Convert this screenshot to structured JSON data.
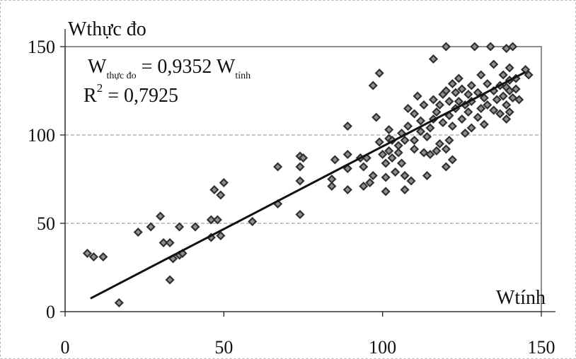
{
  "chart_data": {
    "type": "scatter",
    "title": "",
    "xlabel": "Wtính",
    "ylabel": "Wthực đo",
    "xlim": [
      0,
      150
    ],
    "ylim": [
      0,
      150
    ],
    "xticks": [
      "0",
      "50",
      "100",
      "150"
    ],
    "yticks": [
      "0",
      "50",
      "100",
      "150"
    ],
    "grid": "horizontal",
    "equation": {
      "w1": "W",
      "sub1": "thực đo",
      "eq": " = 0,9352 W",
      "sub2": "tính",
      "r": "R",
      "sup": "2",
      "rval": " = 0,7925"
    },
    "trendline": {
      "slope": 0.9352,
      "intercept": 0,
      "x_start": 8,
      "x_end": 145
    },
    "points": [
      [
        7,
        33
      ],
      [
        9,
        31
      ],
      [
        12,
        31
      ],
      [
        17,
        5
      ],
      [
        23,
        45
      ],
      [
        27,
        48
      ],
      [
        30,
        54
      ],
      [
        31,
        39
      ],
      [
        33,
        39
      ],
      [
        33,
        18
      ],
      [
        34,
        30
      ],
      [
        36,
        32
      ],
      [
        36,
        48
      ],
      [
        37,
        33
      ],
      [
        41,
        48
      ],
      [
        46,
        42
      ],
      [
        46,
        52
      ],
      [
        47,
        69
      ],
      [
        48,
        52
      ],
      [
        49,
        43
      ],
      [
        49,
        66
      ],
      [
        50,
        73
      ],
      [
        59,
        51
      ],
      [
        67,
        61
      ],
      [
        67,
        82
      ],
      [
        74,
        88
      ],
      [
        74,
        82
      ],
      [
        74,
        74
      ],
      [
        74,
        55
      ],
      [
        75,
        87
      ],
      [
        84,
        71
      ],
      [
        84,
        75
      ],
      [
        85,
        86
      ],
      [
        89,
        69
      ],
      [
        89,
        81
      ],
      [
        89,
        89
      ],
      [
        89,
        105
      ],
      [
        93,
        87
      ],
      [
        94,
        71
      ],
      [
        94,
        82
      ],
      [
        95,
        87
      ],
      [
        96,
        73
      ],
      [
        97,
        77
      ],
      [
        97,
        128
      ],
      [
        98,
        110
      ],
      [
        99,
        96
      ],
      [
        99,
        135
      ],
      [
        100,
        89
      ],
      [
        101,
        68
      ],
      [
        101,
        76
      ],
      [
        101,
        84
      ],
      [
        102,
        91
      ],
      [
        102,
        98
      ],
      [
        102,
        103
      ],
      [
        103,
        87
      ],
      [
        103,
        97
      ],
      [
        104,
        79
      ],
      [
        105,
        90
      ],
      [
        105,
        94
      ],
      [
        106,
        84
      ],
      [
        106,
        101
      ],
      [
        107,
        69
      ],
      [
        107,
        77
      ],
      [
        107,
        97
      ],
      [
        108,
        105
      ],
      [
        108,
        115
      ],
      [
        109,
        74
      ],
      [
        110,
        92
      ],
      [
        110,
        97
      ],
      [
        110,
        112
      ],
      [
        111,
        122
      ],
      [
        112,
        102
      ],
      [
        112,
        108
      ],
      [
        113,
        90
      ],
      [
        113,
        117
      ],
      [
        114,
        77
      ],
      [
        114,
        99
      ],
      [
        115,
        89
      ],
      [
        115,
        104
      ],
      [
        116,
        109
      ],
      [
        116,
        120
      ],
      [
        116,
        143
      ],
      [
        117,
        91
      ],
      [
        117,
        113
      ],
      [
        118,
        95
      ],
      [
        118,
        117
      ],
      [
        119,
        107
      ],
      [
        119,
        123
      ],
      [
        120,
        82
      ],
      [
        120,
        92
      ],
      [
        120,
        125
      ],
      [
        120,
        150
      ],
      [
        121,
        97
      ],
      [
        121,
        111
      ],
      [
        121,
        119
      ],
      [
        122,
        86
      ],
      [
        122,
        105
      ],
      [
        122,
        129
      ],
      [
        123,
        115
      ],
      [
        123,
        124
      ],
      [
        124,
        119
      ],
      [
        124,
        132
      ],
      [
        125,
        109
      ],
      [
        125,
        126
      ],
      [
        126,
        101
      ],
      [
        126,
        117
      ],
      [
        127,
        113
      ],
      [
        127,
        123
      ],
      [
        128,
        104
      ],
      [
        128,
        119
      ],
      [
        128,
        128
      ],
      [
        129,
        150
      ],
      [
        130,
        110
      ],
      [
        130,
        124
      ],
      [
        131,
        115
      ],
      [
        131,
        134
      ],
      [
        132,
        106
      ],
      [
        132,
        121
      ],
      [
        133,
        117
      ],
      [
        133,
        129
      ],
      [
        134,
        150
      ],
      [
        135,
        114
      ],
      [
        135,
        125
      ],
      [
        135,
        140
      ],
      [
        136,
        120
      ],
      [
        137,
        112
      ],
      [
        137,
        128
      ],
      [
        138,
        122
      ],
      [
        138,
        134
      ],
      [
        139,
        109
      ],
      [
        139,
        117
      ],
      [
        139,
        127
      ],
      [
        139,
        149
      ],
      [
        140,
        113
      ],
      [
        140,
        125
      ],
      [
        140,
        131
      ],
      [
        140,
        138
      ],
      [
        141,
        121
      ],
      [
        141,
        150
      ],
      [
        142,
        126
      ],
      [
        142,
        132
      ],
      [
        143,
        120
      ],
      [
        145,
        137
      ],
      [
        146,
        134
      ]
    ]
  }
}
